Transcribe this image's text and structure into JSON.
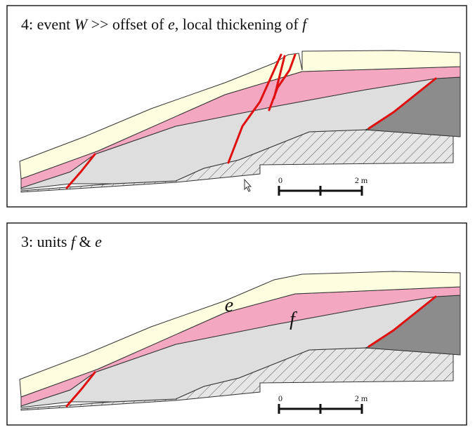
{
  "panels": [
    {
      "title": [
        "4: event ",
        "W",
        " >> offset of ",
        "e",
        ", local thickening of ",
        "f"
      ],
      "scale": {
        "start": "0",
        "end": "2 m"
      }
    },
    {
      "title": [
        "3: units ",
        "f",
        " & ",
        "e"
      ],
      "scale": {
        "start": "0",
        "end": "2 m"
      },
      "unit_labels": [
        "e",
        "f"
      ]
    }
  ]
}
